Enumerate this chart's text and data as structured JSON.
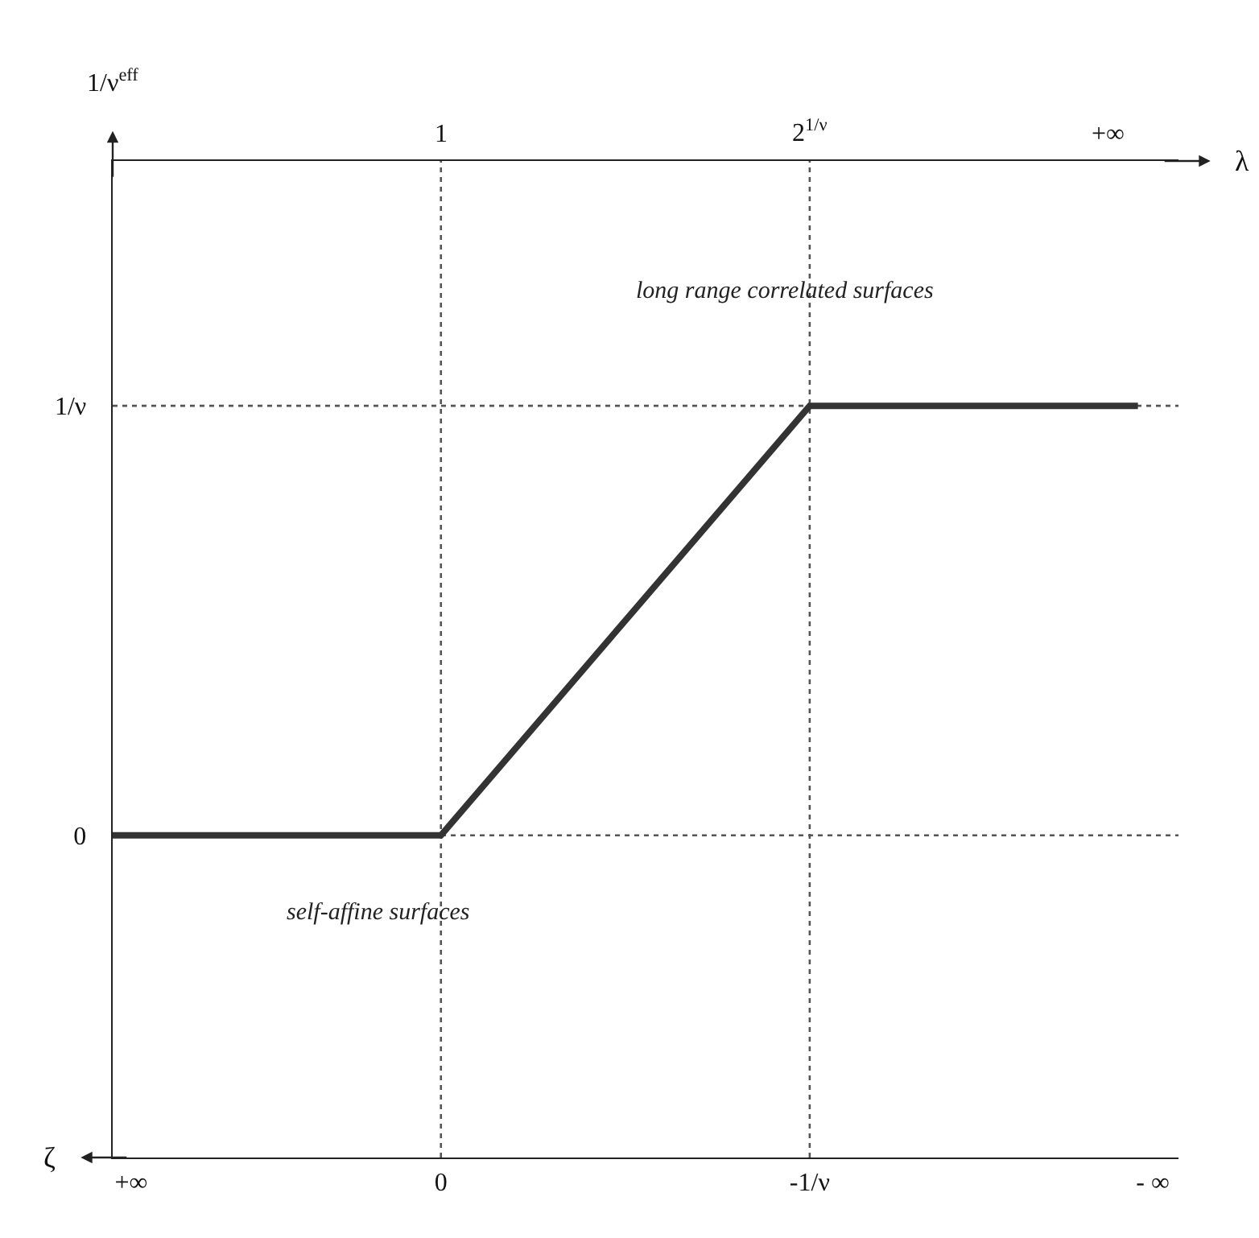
{
  "chart_data": {
    "type": "line",
    "xlabel": "ζ",
    "ylabel": "1/ν$^{eff}$",
    "x2label": "λ",
    "series": [
      {
        "color": "#333333",
        "x": [
          0.89,
          0,
          -1,
          -1.89
        ],
        "values": [
          0,
          0,
          1,
          1
        ]
      }
    ],
    "xlim": [
      0.89,
      -2.0
    ],
    "xticks": [
      {
        "value": 0.84,
        "label": "+∞"
      },
      {
        "value": 0,
        "label": "0"
      },
      {
        "value": -1,
        "label": "-1/ν"
      },
      {
        "value": -1.93,
        "label": "- ∞"
      }
    ],
    "ylim": [
      -0.75,
      1.57
    ],
    "yticks": [
      {
        "value": 0,
        "label": "0"
      },
      {
        "value": 1,
        "label": "1/ν"
      }
    ],
    "ref_lines": [
      {
        "axis": "x",
        "value": 0,
        "line_style": "dotted",
        "color": "#555555"
      },
      {
        "axis": "x",
        "value": -1,
        "line_style": "dotted",
        "color": "#555555"
      },
      {
        "axis": "y",
        "value": 0,
        "line_style": "dotted",
        "color": "#555555"
      },
      {
        "axis": "y",
        "value": 1,
        "line_style": "dotted",
        "color": "#555555"
      }
    ],
    "annotations": [
      "long range correlated surfaces",
      "self-affine surfaces",
      "1",
      "2$^{1/ν}$",
      "+∞"
    ],
    "line_style": "solid",
    "marker": "none"
  }
}
